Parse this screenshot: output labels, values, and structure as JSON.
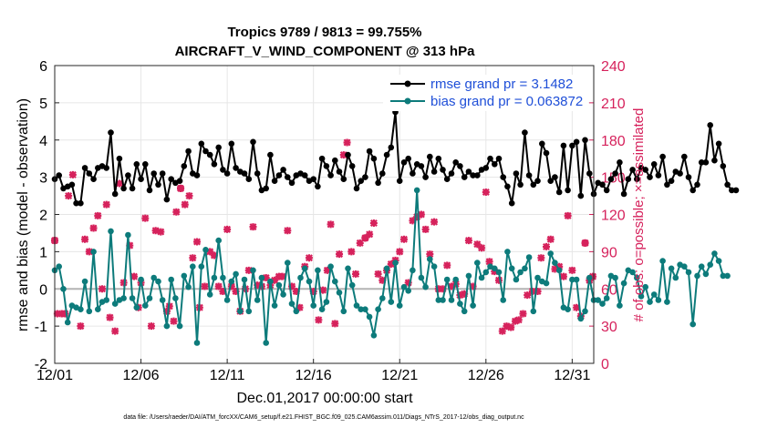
{
  "title_line1": "Tropics 9789 / 9813 = 99.755%",
  "title_line2": "AIRCRAFT_V_WIND_COMPONENT @ 313 hPa",
  "footer": "data file: /Users/raeder/DAI/ATM_forcXX/CAM6_setup/f.e21.FHIST_BGC.f09_025.CAM6assim.011/Diags_NTrS_2017-12/obs_diag_output.nc",
  "colors": {
    "rmse": "#000000",
    "bias": "#0d7b7b",
    "obs": "#d6225c",
    "zero": "#b4b4b4",
    "legend_text": "#1f4fd8"
  },
  "chart_data": {
    "type": "line",
    "xlabel": "Dec.01,2017 00:00:00 start",
    "ylabel": "rmse and bias (model - observation)",
    "ylabel_right": "# of obs: o=possible; ×=assimilated",
    "xlim": [
      0,
      31.25
    ],
    "ylim": [
      -2,
      6
    ],
    "ylim_right": [
      0,
      240
    ],
    "xticks": [
      {
        "x": 0,
        "label": "12/01"
      },
      {
        "x": 5,
        "label": "12/06"
      },
      {
        "x": 10,
        "label": "12/11"
      },
      {
        "x": 15,
        "label": "12/16"
      },
      {
        "x": 20,
        "label": "12/21"
      },
      {
        "x": 25,
        "label": "12/26"
      },
      {
        "x": 30,
        "label": "12/31"
      }
    ],
    "yticks": [
      -2,
      -1,
      0,
      1,
      2,
      3,
      4,
      5,
      6
    ],
    "yticks_right": [
      0,
      30,
      60,
      90,
      120,
      150,
      180,
      210,
      240
    ],
    "legend_location": "top-right",
    "series": [
      {
        "name": "rmse grand pr = 3.1482",
        "axis": "left",
        "x0": 0,
        "dx": 0.25,
        "values": [
          2.95,
          3.05,
          2.7,
          2.75,
          2.8,
          2.3,
          2.3,
          3.25,
          3.1,
          2.95,
          3.25,
          3.3,
          3.25,
          4.2,
          2.55,
          3.5,
          2.7,
          3.05,
          2.7,
          3.35,
          2.95,
          3.35,
          2.65,
          3.1,
          2.8,
          3.1,
          2.4,
          2.95,
          2.85,
          2.9,
          3.3,
          3.7,
          3.1,
          3.05,
          3.9,
          3.7,
          3.6,
          3.35,
          3.8,
          3.2,
          3.1,
          3.9,
          3.25,
          3.15,
          3.1,
          2.95,
          3.95,
          3.1,
          2.65,
          2.7,
          3.6,
          2.9,
          3.05,
          3.2,
          3.0,
          2.85,
          3.05,
          3.1,
          3.05,
          2.9,
          2.95,
          2.75,
          3.5,
          3.3,
          3.05,
          3.45,
          3.15,
          2.95,
          3.6,
          3.3,
          2.7,
          2.9,
          3.0,
          3.7,
          3.5,
          2.85,
          3.1,
          3.6,
          3.8,
          4.75,
          2.9,
          3.4,
          3.5,
          3.1,
          3.35,
          3.3,
          3.0,
          3.55,
          3.15,
          3.5,
          3.2,
          2.95,
          3.1,
          3.4,
          3.3,
          3.0,
          3.15,
          3.05,
          3.05,
          3.2,
          3.25,
          3.5,
          3.35,
          3.5,
          3.0,
          2.75,
          2.3,
          3.1,
          2.8,
          4.2,
          3.05,
          2.8,
          2.9,
          3.9,
          3.65,
          2.9,
          3.0,
          2.6,
          3.85,
          2.65,
          3.85,
          3.95,
          2.5,
          4.0,
          3.1,
          2.55,
          2.85,
          2.8,
          2.65,
          2.95,
          3.1,
          3.4,
          2.55,
          2.95,
          3.2,
          2.95,
          3.25,
          3.2,
          3.0,
          3.35,
          3.05,
          3.55,
          2.8,
          2.9,
          3.15,
          3.1,
          3.55,
          3.0,
          2.65,
          2.8,
          3.4,
          3.4,
          4.4,
          3.45,
          3.9,
          3.3,
          2.8,
          2.65,
          2.65
        ]
      },
      {
        "name": "bias grand pr = 0.063872",
        "axis": "left",
        "x0": 0,
        "dx": 0.25,
        "values": [
          0.5,
          0.6,
          0.0,
          -0.9,
          -0.45,
          -0.5,
          -0.55,
          0.2,
          -0.6,
          1.0,
          -0.55,
          -0.35,
          -0.3,
          1.55,
          -0.4,
          -0.3,
          -0.25,
          1.45,
          -0.25,
          -0.5,
          0.25,
          -0.45,
          -0.25,
          0.3,
          0.2,
          -0.3,
          -1.0,
          0.25,
          -0.25,
          -1.0,
          0.35,
          0.05,
          0.6,
          -1.45,
          0.6,
          1.05,
          -0.15,
          0.3,
          1.3,
          0.3,
          -0.3,
          0.2,
          0.4,
          -0.6,
          0.25,
          -0.6,
          0.5,
          -0.3,
          0.3,
          -1.45,
          0.2,
          -0.45,
          0.1,
          -0.15,
          0.7,
          -0.4,
          -0.6,
          0.3,
          0.55,
          0.2,
          -0.45,
          0.5,
          -0.55,
          -0.35,
          0.6,
          0.2,
          -0.1,
          -0.6,
          0.55,
          0.1,
          -0.45,
          -0.55,
          -0.55,
          -0.75,
          -1.25,
          -0.55,
          -0.25,
          0.55,
          -0.35,
          0.7,
          -0.45,
          0.05,
          -0.05,
          0.5,
          2.65,
          0.3,
          0.05,
          0.8,
          0.6,
          -0.3,
          -0.3,
          0.25,
          -0.3,
          0.25,
          -0.4,
          -0.6,
          0.35,
          -0.45,
          0.7,
          0.3,
          0.45,
          0.6,
          0.55,
          0.45,
          -0.3,
          1.0,
          0.55,
          0.25,
          0.45,
          0.55,
          0.85,
          -0.6,
          0.3,
          0.2,
          0.15,
          0.95,
          0.7,
          0.5,
          -0.5,
          -0.55,
          0.25,
          0.25,
          -0.8,
          -0.6,
          0.3,
          -0.3,
          -0.3,
          -0.4,
          -0.25,
          0.35,
          0.3,
          -0.45,
          0.15,
          0.5,
          0.45,
          0.3,
          -0.2,
          0.05,
          -0.35,
          -0.15,
          -0.3,
          0.75,
          -0.35,
          0.55,
          0.3,
          0.65,
          0.6,
          0.45,
          -0.95,
          0.35,
          0.6,
          0.4,
          0.65,
          0.95,
          0.75,
          0.35,
          0.35
        ]
      },
      {
        "name": "# assimilated obs",
        "axis": "right",
        "marker": "x",
        "points": [
          [
            0.0,
            99
          ],
          [
            0.15,
            40
          ],
          [
            0.4,
            40
          ],
          [
            0.6,
            40
          ],
          [
            0.8,
            135
          ],
          [
            1.05,
            152
          ],
          [
            1.5,
            30
          ],
          [
            1.75,
            100
          ],
          [
            2.0,
            90
          ],
          [
            2.25,
            109
          ],
          [
            2.5,
            119
          ],
          [
            2.75,
            60
          ],
          [
            3.0,
            128
          ],
          [
            3.2,
            37
          ],
          [
            3.5,
            26
          ],
          [
            3.75,
            145
          ],
          [
            4.0,
            65
          ],
          [
            4.35,
            95
          ],
          [
            4.6,
            70
          ],
          [
            4.85,
            45
          ],
          [
            5.0,
            65
          ],
          [
            5.25,
            117
          ],
          [
            5.6,
            30
          ],
          [
            5.85,
            107
          ],
          [
            6.15,
            106
          ],
          [
            6.5,
            42
          ],
          [
            6.65,
            46
          ],
          [
            6.9,
            34
          ],
          [
            7.05,
            122
          ],
          [
            7.3,
            141
          ],
          [
            7.55,
            128
          ],
          [
            7.8,
            135
          ],
          [
            8.0,
            85
          ],
          [
            8.25,
            98
          ],
          [
            8.4,
            45
          ],
          [
            8.7,
            62
          ],
          [
            9.0,
            90
          ],
          [
            9.25,
            87
          ],
          [
            9.5,
            62
          ],
          [
            9.75,
            58
          ],
          [
            10.0,
            108
          ],
          [
            10.25,
            62
          ],
          [
            10.5,
            58
          ],
          [
            10.75,
            42
          ],
          [
            11.05,
            60
          ],
          [
            11.25,
            75
          ],
          [
            11.5,
            110
          ],
          [
            11.75,
            63
          ],
          [
            12.0,
            62
          ],
          [
            12.25,
            69
          ],
          [
            12.5,
            63
          ],
          [
            12.75,
            67
          ],
          [
            13.0,
            70
          ],
          [
            13.2,
            70
          ],
          [
            13.5,
            107
          ],
          [
            13.75,
            62
          ],
          [
            14.0,
            58
          ],
          [
            14.2,
            45
          ],
          [
            14.5,
            78
          ],
          [
            14.75,
            85
          ],
          [
            15.0,
            58
          ],
          [
            15.3,
            35
          ],
          [
            15.55,
            59
          ],
          [
            15.8,
            75
          ],
          [
            16.0,
            112
          ],
          [
            16.25,
            32
          ],
          [
            16.5,
            88
          ],
          [
            16.75,
            168
          ],
          [
            16.95,
            178
          ],
          [
            17.2,
            90
          ],
          [
            17.45,
            72
          ],
          [
            17.7,
            97
          ],
          [
            18.0,
            101
          ],
          [
            18.25,
            104
          ],
          [
            18.5,
            113
          ],
          [
            18.75,
            72
          ],
          [
            19.0,
            67
          ],
          [
            19.25,
            75
          ],
          [
            19.5,
            80
          ],
          [
            19.75,
            83
          ],
          [
            20.0,
            90
          ],
          [
            20.25,
            100
          ],
          [
            20.5,
            65
          ],
          [
            20.75,
            115
          ],
          [
            21.0,
            118
          ],
          [
            21.25,
            120
          ],
          [
            21.5,
            108
          ],
          [
            21.75,
            88
          ],
          [
            22.0,
            114
          ],
          [
            22.25,
            60
          ],
          [
            22.5,
            60
          ],
          [
            22.75,
            79
          ],
          [
            23.0,
            62
          ],
          [
            23.25,
            64
          ],
          [
            23.5,
            55
          ],
          [
            23.75,
            56
          ],
          [
            24.0,
            99
          ],
          [
            24.25,
            62
          ],
          [
            24.5,
            96
          ],
          [
            24.75,
            93
          ],
          [
            25.0,
            138
          ],
          [
            25.2,
            82
          ],
          [
            25.5,
            74
          ],
          [
            25.75,
            67
          ],
          [
            25.95,
            26
          ],
          [
            26.2,
            30
          ],
          [
            26.45,
            29
          ],
          [
            26.7,
            34
          ],
          [
            26.9,
            35
          ],
          [
            27.15,
            40
          ],
          [
            27.4,
            55
          ],
          [
            27.7,
            58
          ],
          [
            28.0,
            58
          ],
          [
            28.2,
            85
          ],
          [
            28.5,
            94
          ],
          [
            28.75,
            100
          ],
          [
            29.0,
            76
          ],
          [
            29.25,
            78
          ],
          [
            29.5,
            70
          ],
          [
            29.75,
            119
          ],
          [
            30.0,
            75
          ],
          [
            30.25,
            45
          ],
          [
            30.5,
            38
          ],
          [
            30.75,
            97
          ],
          [
            31.0,
            67
          ],
          [
            31.2,
            70
          ]
        ]
      },
      {
        "name": "# possible obs",
        "axis": "right",
        "marker": "o",
        "points": [
          [
            0.0,
            99
          ],
          [
            7.3,
            141
          ],
          [
            18.0,
            101
          ],
          [
            30.75,
            97
          ]
        ]
      },
      {
        "name": "zero line",
        "axis": "left",
        "values": [
          0
        ]
      }
    ]
  }
}
